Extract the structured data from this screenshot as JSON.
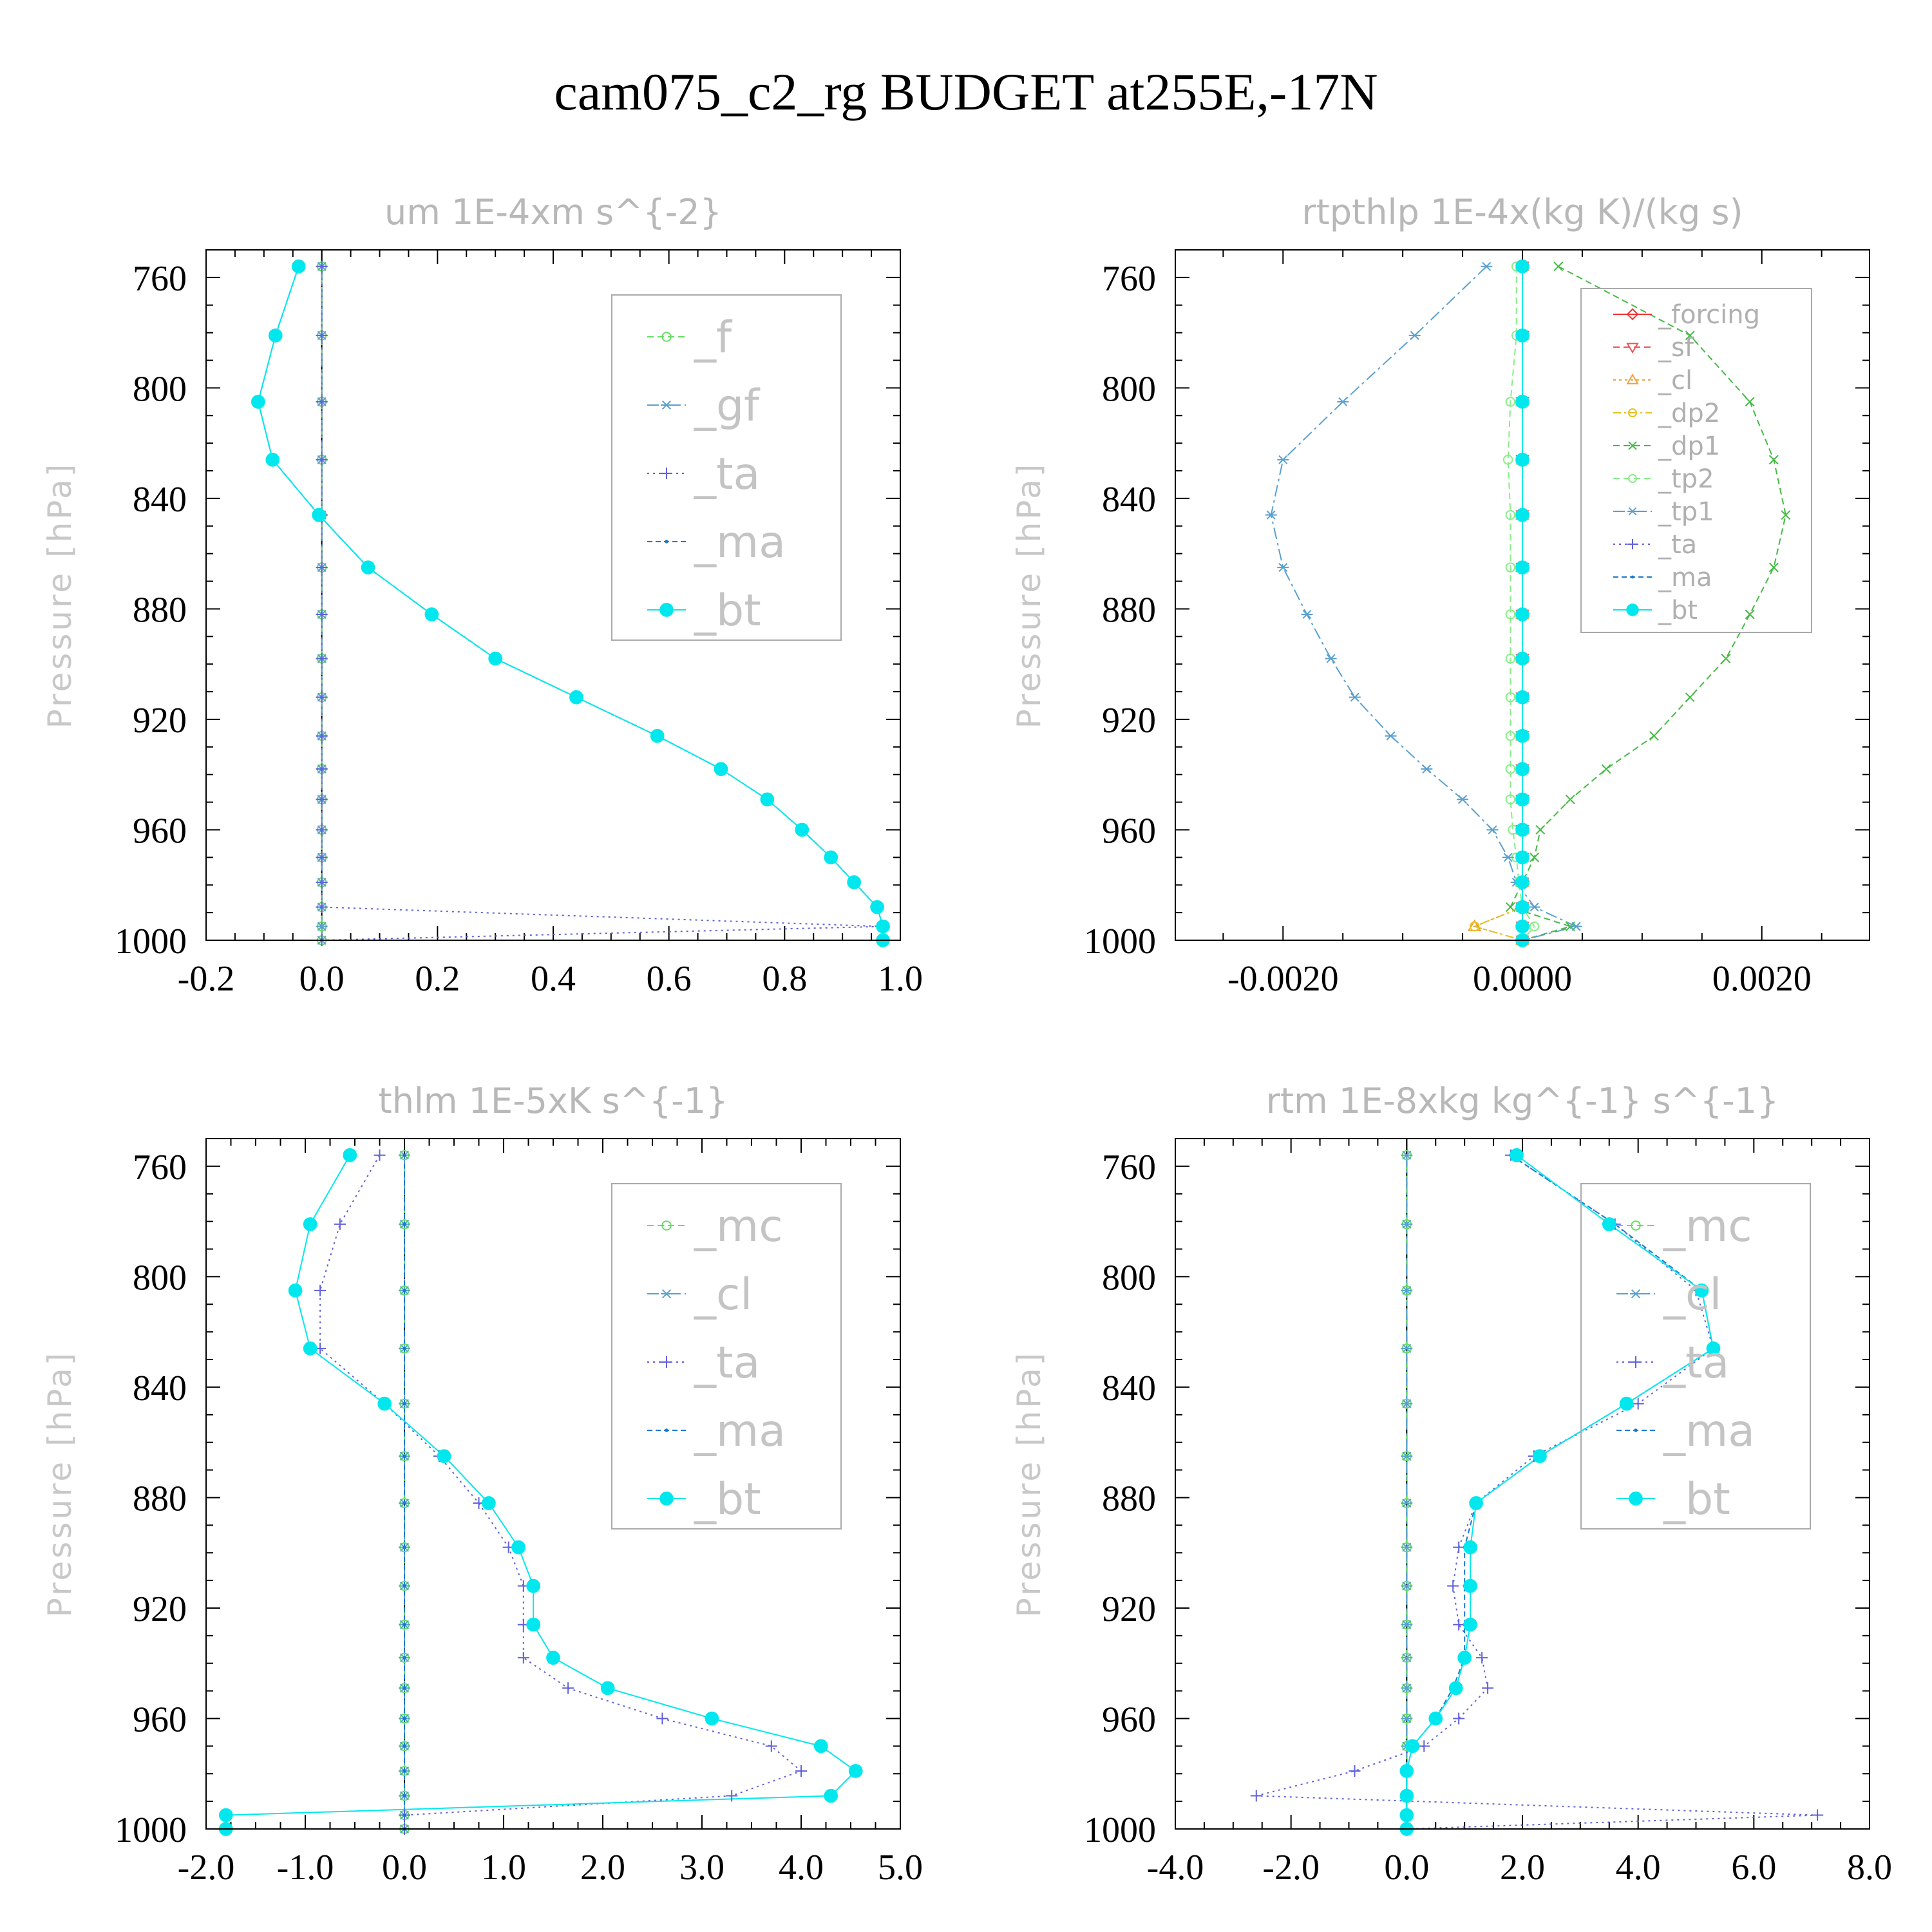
{
  "title": "cam075_c2_rg  BUDGET at255E,-17N",
  "chart_data": [
    {
      "type": "line",
      "title": "um   1E-4xm s^{-2}",
      "ylabel": "Pressure [hPa]",
      "xlabel": "",
      "xlim": [
        -0.2,
        1.0
      ],
      "ylim": [
        1000,
        750
      ],
      "xticks": [
        "-0.2",
        "0.0",
        "0.2",
        "0.4",
        "0.6",
        "0.8",
        "1.0"
      ],
      "xtick_values": [
        -0.2,
        0.0,
        0.2,
        0.4,
        0.6,
        0.8,
        1.0
      ],
      "yticks": [
        "760",
        "800",
        "840",
        "880",
        "920",
        "960",
        "1000"
      ],
      "ytick_values": [
        760,
        800,
        840,
        880,
        920,
        960,
        1000
      ],
      "legend_position": "top-right",
      "legend_size": "big",
      "levels": [
        756,
        781,
        805,
        826,
        846,
        865,
        882,
        898,
        912,
        926,
        938,
        949,
        960,
        970,
        979,
        988,
        995,
        1000
      ],
      "series": [
        {
          "name": "_f",
          "color": "#66dd66",
          "dash": "10,6",
          "marker": "circle",
          "values": [
            0,
            0,
            0,
            0,
            0,
            0,
            0,
            0,
            0,
            0,
            0,
            0,
            0,
            0,
            0,
            0,
            0,
            0
          ]
        },
        {
          "name": "_gf",
          "color": "#5aa0d0",
          "dash": "18,6,4,6",
          "marker": "star",
          "values": [
            0,
            0,
            0,
            0,
            0,
            0,
            0,
            0,
            0,
            0,
            0,
            0,
            0,
            0,
            0,
            0,
            0,
            0
          ]
        },
        {
          "name": "_ta",
          "color": "#6060dd",
          "dash": "3,6",
          "marker": "plus",
          "values": [
            0,
            0,
            0,
            0,
            0,
            0,
            0,
            0,
            0,
            0,
            0,
            0,
            0,
            0,
            0,
            0,
            0.97,
            0
          ]
        },
        {
          "name": "_ma",
          "color": "#1a7acc",
          "dash": "8,5",
          "marker": "dot",
          "values": [
            -0.04,
            -0.08,
            -0.11,
            -0.085,
            -0.005,
            0.08,
            0.19,
            0.3,
            0.44,
            0.58,
            0.69,
            0.77,
            0.83,
            0.88,
            0.92,
            0.96,
            0.97,
            0.97
          ]
        },
        {
          "name": "_bt",
          "color": "#00e8ee",
          "dash": "",
          "marker": "filled-circle",
          "values": [
            -0.04,
            -0.08,
            -0.11,
            -0.085,
            -0.005,
            0.08,
            0.19,
            0.3,
            0.44,
            0.58,
            0.69,
            0.77,
            0.83,
            0.88,
            0.92,
            0.96,
            0.97,
            0.97
          ]
        }
      ]
    },
    {
      "type": "line",
      "title": "rtpthlp   1E-4x(kg K)/(kg s)",
      "ylabel": "Pressure [hPa]",
      "xlabel": "",
      "xlim": [
        -0.0029,
        0.0029
      ],
      "ylim": [
        1000,
        750
      ],
      "xticks": [
        "-0.0020",
        "0.0000",
        "0.0020"
      ],
      "xtick_values": [
        -0.002,
        0.0,
        0.002
      ],
      "yticks": [
        "760",
        "800",
        "840",
        "880",
        "920",
        "960",
        "1000"
      ],
      "ytick_values": [
        760,
        800,
        840,
        880,
        920,
        960,
        1000
      ],
      "legend_position": "top-right",
      "legend_size": "small",
      "levels": [
        756,
        781,
        805,
        826,
        846,
        865,
        882,
        898,
        912,
        926,
        938,
        949,
        960,
        970,
        979,
        988,
        995,
        1000
      ],
      "series": [
        {
          "name": "_forcing",
          "color": "#ee3333",
          "dash": "",
          "marker": "diamond",
          "values": [
            0,
            0,
            0,
            0,
            0,
            0,
            0,
            0,
            0,
            0,
            0,
            0,
            0,
            0,
            0,
            0,
            0,
            0
          ]
        },
        {
          "name": "_sf",
          "color": "#ee5555",
          "dash": "10,6",
          "marker": "triangle-down",
          "values": [
            0,
            0,
            0,
            0,
            0,
            0,
            0,
            0,
            0,
            0,
            0,
            0,
            0,
            0,
            0,
            0,
            0,
            0
          ]
        },
        {
          "name": "_cl",
          "color": "#f0a040",
          "dash": "4,5",
          "marker": "triangle",
          "values": [
            0,
            0,
            0,
            0,
            0,
            0,
            0,
            0,
            0,
            0,
            0,
            0,
            0,
            0,
            0,
            0,
            -0.0004,
            0
          ]
        },
        {
          "name": "_dp2",
          "color": "#e8c020",
          "dash": "12,5,3,5",
          "marker": "circle",
          "values": [
            0,
            0,
            0,
            0,
            0,
            0,
            0,
            0,
            0,
            0,
            0,
            0,
            0,
            0,
            0,
            0,
            -0.0004,
            0
          ]
        },
        {
          "name": "_dp1",
          "color": "#44bb44",
          "dash": "10,6",
          "marker": "x",
          "values": [
            0.0003,
            0.0014,
            0.0019,
            0.0021,
            0.0022,
            0.0021,
            0.0019,
            0.0017,
            0.0014,
            0.0011,
            0.0007,
            0.0004,
            0.00015,
            0.0001,
            0.0,
            -0.0001,
            0.0004,
            0
          ]
        },
        {
          "name": "_tp2",
          "color": "#88ee88",
          "dash": "10,6",
          "marker": "circle",
          "values": [
            -5e-05,
            -5e-05,
            -0.0001,
            -0.00012,
            -0.0001,
            -0.0001,
            -0.0001,
            -0.0001,
            -0.0001,
            -0.0001,
            -0.0001,
            -0.0001,
            -8e-05,
            -5e-05,
            -3e-05,
            0,
            0.0001,
            0
          ]
        },
        {
          "name": "_tp1",
          "color": "#5aa0d0",
          "dash": "18,6,4,6",
          "marker": "star",
          "values": [
            -0.0003,
            -0.0009,
            -0.0015,
            -0.002,
            -0.0021,
            -0.002,
            -0.0018,
            -0.0016,
            -0.0014,
            -0.0011,
            -0.0008,
            -0.0005,
            -0.00025,
            -0.00012,
            -5e-05,
            0.0001,
            0.00045,
            0
          ]
        },
        {
          "name": "_ta",
          "color": "#6060dd",
          "dash": "3,6",
          "marker": "plus",
          "values": [
            0,
            0,
            0,
            0,
            0,
            0,
            0,
            0,
            0,
            0,
            0,
            0,
            0,
            0,
            0,
            0,
            0,
            0
          ]
        },
        {
          "name": "_ma",
          "color": "#1a7acc",
          "dash": "8,5",
          "marker": "dot",
          "values": [
            0,
            0,
            0,
            0,
            0,
            0,
            0,
            0,
            0,
            0,
            0,
            0,
            0,
            0,
            0,
            0,
            0,
            0
          ]
        },
        {
          "name": "_bt",
          "color": "#00e8ee",
          "dash": "",
          "marker": "filled-circle",
          "values": [
            0,
            0,
            0,
            0,
            0,
            0,
            0,
            0,
            0,
            0,
            0,
            0,
            0,
            0,
            0,
            0,
            0,
            0
          ]
        }
      ]
    },
    {
      "type": "line",
      "title": "thlm   1E-5xK s^{-1}",
      "ylabel": "Pressure [hPa]",
      "xlabel": "",
      "xlim": [
        -2.0,
        5.0
      ],
      "ylim": [
        1000,
        750
      ],
      "xticks": [
        "-2.0",
        "-1.0",
        "0.0",
        "1.0",
        "2.0",
        "3.0",
        "4.0",
        "5.0"
      ],
      "xtick_values": [
        -2.0,
        -1.0,
        0.0,
        1.0,
        2.0,
        3.0,
        4.0,
        5.0
      ],
      "yticks": [
        "760",
        "800",
        "840",
        "880",
        "920",
        "960",
        "1000"
      ],
      "ytick_values": [
        760,
        800,
        840,
        880,
        920,
        960,
        1000
      ],
      "legend_position": "top-right",
      "legend_size": "big",
      "levels": [
        756,
        781,
        805,
        826,
        846,
        865,
        882,
        898,
        912,
        926,
        938,
        949,
        960,
        970,
        979,
        988,
        995,
        1000
      ],
      "series": [
        {
          "name": "_mc",
          "color": "#66dd66",
          "dash": "10,6",
          "marker": "circle",
          "values": [
            0,
            0,
            0,
            0,
            0,
            0,
            0,
            0,
            0,
            0,
            0,
            0,
            0,
            0,
            0,
            0,
            0,
            0
          ]
        },
        {
          "name": "_cl",
          "color": "#5aa0d0",
          "dash": "18,6,4,6",
          "marker": "star",
          "values": [
            0,
            0,
            0,
            0,
            0,
            0,
            0,
            0,
            0,
            0,
            0,
            0,
            0,
            0,
            0,
            0,
            0,
            0
          ]
        },
        {
          "name": "_ta",
          "color": "#6060dd",
          "dash": "3,6",
          "marker": "plus",
          "values": [
            -0.25,
            -0.65,
            -0.85,
            -0.85,
            -0.2,
            0.35,
            0.75,
            1.05,
            1.2,
            1.2,
            1.2,
            1.65,
            2.6,
            3.7,
            4.0,
            3.3,
            0.0,
            0.0
          ]
        },
        {
          "name": "_ma",
          "color": "#1a7acc",
          "dash": "8,5",
          "marker": "dot",
          "values": [
            0,
            0,
            0,
            0,
            0,
            0,
            0,
            0,
            0,
            0,
            0,
            0,
            0,
            0,
            0,
            0,
            0,
            0
          ]
        },
        {
          "name": "_bt",
          "color": "#00e8ee",
          "dash": "",
          "marker": "filled-circle",
          "values": [
            -0.55,
            -0.95,
            -1.1,
            -0.95,
            -0.2,
            0.4,
            0.85,
            1.15,
            1.3,
            1.3,
            1.5,
            2.05,
            3.1,
            4.2,
            4.55,
            4.3,
            -1.8,
            -1.8
          ]
        }
      ]
    },
    {
      "type": "line",
      "title": "rtm   1E-8xkg kg^{-1} s^{-1}",
      "ylabel": "Pressure [hPa]",
      "xlabel": "",
      "xlim": [
        -4.0,
        8.0
      ],
      "ylim": [
        1000,
        750
      ],
      "xticks": [
        "-4.0",
        "-2.0",
        "0.0",
        "2.0",
        "4.0",
        "6.0",
        "8.0"
      ],
      "xtick_values": [
        -4.0,
        -2.0,
        0.0,
        2.0,
        4.0,
        6.0,
        8.0
      ],
      "yticks": [
        "760",
        "800",
        "840",
        "880",
        "920",
        "960",
        "1000"
      ],
      "ytick_values": [
        760,
        800,
        840,
        880,
        920,
        960,
        1000
      ],
      "legend_position": "top-right",
      "legend_size": "big",
      "levels": [
        756,
        781,
        805,
        826,
        846,
        865,
        882,
        898,
        912,
        926,
        938,
        949,
        960,
        970,
        979,
        988,
        995,
        1000
      ],
      "series": [
        {
          "name": "_mc",
          "color": "#66dd66",
          "dash": "10,6",
          "marker": "circle",
          "values": [
            0,
            0,
            0,
            0,
            0,
            0,
            0,
            0,
            0,
            0,
            0,
            0,
            0,
            0,
            0,
            0,
            0,
            0
          ]
        },
        {
          "name": "_cl",
          "color": "#5aa0d0",
          "dash": "18,6,4,6",
          "marker": "star",
          "values": [
            0,
            0,
            0,
            0,
            0,
            0,
            0,
            0,
            0,
            0,
            0,
            0,
            0,
            0,
            0,
            0,
            0,
            0
          ]
        },
        {
          "name": "_ta",
          "color": "#6060dd",
          "dash": "3,6",
          "marker": "plus",
          "values": [
            1.8,
            3.6,
            5.0,
            5.3,
            4.0,
            2.2,
            1.2,
            0.9,
            0.8,
            0.9,
            1.3,
            1.4,
            0.9,
            0.3,
            -0.9,
            -2.6,
            7.1,
            0.0
          ]
        },
        {
          "name": "_ma",
          "color": "#1a7acc",
          "dash": "8,5",
          "marker": "dot",
          "values": [
            1.8,
            3.6,
            5.1,
            5.3,
            3.8,
            2.3,
            1.2,
            1.0,
            1.0,
            1.0,
            1.0,
            0.8,
            0.5,
            0.1,
            0,
            0,
            0,
            0
          ]
        },
        {
          "name": "_bt",
          "color": "#00e8ee",
          "dash": "",
          "marker": "filled-circle",
          "values": [
            1.9,
            3.5,
            5.1,
            5.3,
            3.8,
            2.3,
            1.2,
            1.1,
            1.1,
            1.1,
            1.0,
            0.85,
            0.5,
            0.1,
            0.0,
            0.0,
            0.0,
            0.0
          ]
        }
      ]
    }
  ]
}
